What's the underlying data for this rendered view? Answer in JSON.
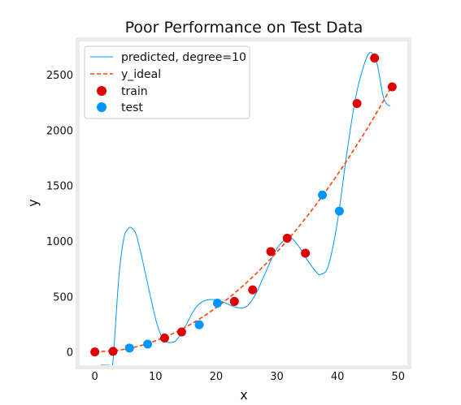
{
  "chart_data": {
    "type": "scatter",
    "title": "Poor Performance on Test Data",
    "xlabel": "x",
    "ylabel": "y",
    "xlim": [
      -2.5,
      51.5
    ],
    "ylim": [
      -120,
      2800
    ],
    "xticks": [
      0,
      10,
      20,
      30,
      40,
      50
    ],
    "yticks": [
      0,
      500,
      1000,
      1500,
      2000,
      2500
    ],
    "grid": false,
    "legend_position": "top-left",
    "series": [
      {
        "name": "predicted, degree=10",
        "kind": "line",
        "color": "#0096ff",
        "x": [
          0.9,
          2.3,
          2.9,
          3.3,
          4.0,
          4.8,
          5.5,
          6.0,
          6.8,
          7.8,
          9.0,
          10.2,
          11.3,
          12.5,
          13.5,
          15.0,
          16.5,
          18.0,
          20.0,
          22.0,
          23.5,
          25.0,
          26.5,
          28.0,
          30.0,
          32.0,
          33.5,
          35.0,
          36.5,
          37.3,
          38.5,
          40.0,
          41.5,
          43.0,
          44.5,
          45.5,
          46.5,
          47.5,
          48.2,
          48.7
        ],
        "y": [
          -120,
          -120,
          -120,
          160,
          700,
          1030,
          1110,
          1120,
          1060,
          840,
          540,
          260,
          110,
          85,
          110,
          240,
          390,
          460,
          470,
          430,
          400,
          410,
          520,
          700,
          930,
          1030,
          960,
          830,
          720,
          700,
          780,
          1180,
          1780,
          2300,
          2610,
          2700,
          2600,
          2310,
          2230,
          2220
        ]
      },
      {
        "name": "y_ideal",
        "kind": "line",
        "style": "dashed",
        "color": "#ff4500",
        "x": [
          0,
          5,
          10,
          15,
          20,
          25,
          30,
          35,
          40,
          45,
          49
        ],
        "y": [
          0,
          25,
          100,
          225,
          400,
          625,
          900,
          1225,
          1600,
          2025,
          2401
        ]
      },
      {
        "name": "train",
        "kind": "scatter",
        "color": "#dd0000",
        "x": [
          0,
          3,
          11.5,
          14.3,
          23,
          26,
          29,
          31.7,
          34.7,
          43.2,
          46.1,
          49
        ],
        "y": [
          0,
          5,
          125,
          180,
          455,
          560,
          905,
          1025,
          890,
          2240,
          2650,
          2390
        ]
      },
      {
        "name": "test",
        "kind": "scatter",
        "color": "#0096ff",
        "x": [
          5.7,
          8.7,
          17.2,
          20.2,
          37.5,
          40.3
        ],
        "y": [
          35,
          70,
          245,
          440,
          1415,
          1270
        ]
      }
    ]
  }
}
